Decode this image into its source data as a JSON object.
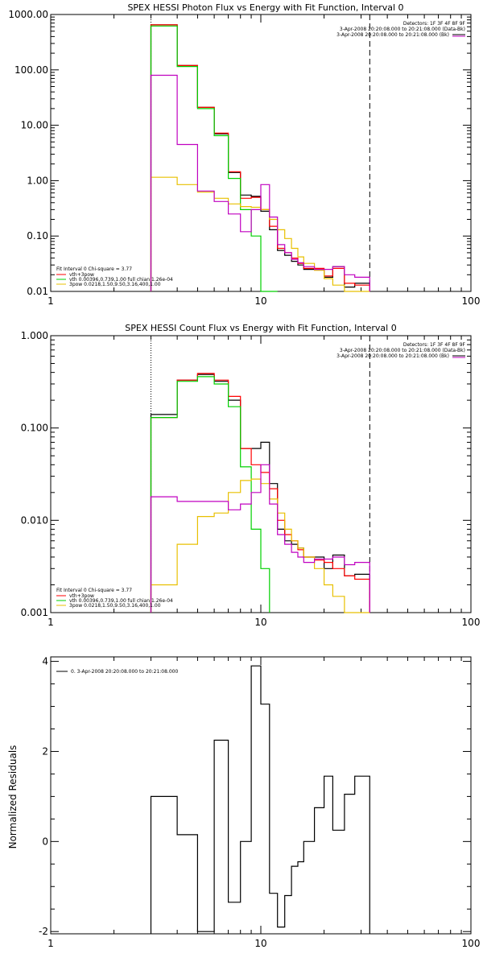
{
  "chart_data": [
    {
      "type": "line",
      "title": "SPEX HESSI Photon Flux vs Energy with Fit Function, Interval 0",
      "xscale": "log",
      "yscale": "log",
      "xlim": [
        1,
        100
      ],
      "ylim": [
        0.01,
        1000
      ],
      "xticks": [
        "1",
        "10",
        "100"
      ],
      "yticks": [
        "0.01",
        "0.10",
        "1.00",
        "10.00",
        "100.00",
        "1000.00"
      ],
      "ytick_values": [
        0.01,
        0.1,
        1,
        10,
        100,
        1000
      ],
      "energy_bins": [
        3,
        4,
        5,
        6,
        7,
        8,
        9,
        10,
        11,
        12,
        13,
        14,
        15,
        16,
        18,
        20,
        22,
        25,
        28,
        33
      ],
      "vlines": [
        {
          "x": 3,
          "style": "dotted"
        },
        {
          "x": 33,
          "style": "dashed"
        }
      ],
      "header_right": [
        "Detectors: 1F 3F 4F 8F 9F",
        "3-Apr-2008 20:20:08.000 to 20:21:08.000 (Data-Bk)",
        "3-Apr-2008 20:20:08.000 to 20:21:08.000 (Bk)"
      ],
      "header_colors": [
        "#000000",
        "#000000",
        "#c000c0"
      ],
      "legend": [
        "Fit Interval 0   Chi-square = 3.77",
        "vth+3pow",
        "vth 0.00396,0.739,1.00  full chian 1.26e-04",
        "3pow 0.0218,1.50,9.50,3.16,400,1.00"
      ],
      "legend_colors": [
        "",
        "#ff0000",
        "#00d000",
        "#e8c000"
      ],
      "series": [
        {
          "name": "Data-Bk",
          "color": "#000000",
          "values": [
            650,
            120,
            21,
            7,
            1.4,
            0.55,
            0.52,
            0.28,
            0.13,
            0.055,
            0.045,
            0.035,
            0.03,
            0.025,
            0.025,
            0.018,
            0.028,
            0.012,
            0.014
          ]
        },
        {
          "name": "vth+3pow",
          "color": "#ff0000",
          "values": [
            650,
            120,
            21,
            7.2,
            1.45,
            0.48,
            0.5,
            0.3,
            0.15,
            0.06,
            0.05,
            0.04,
            0.032,
            0.026,
            0.026,
            0.019,
            0.026,
            0.014,
            0.013
          ]
        },
        {
          "name": "vth",
          "color": "#00d000",
          "values": [
            620,
            115,
            20,
            6.5,
            1.1,
            0.3,
            0.1,
            0.01,
            0.004
          ]
        },
        {
          "name": "3pow",
          "color": "#e8c000",
          "values": [
            1.15,
            0.85,
            0.62,
            0.48,
            0.38,
            0.34,
            0.33,
            0.3,
            0.2,
            0.13,
            0.09,
            0.06,
            0.042,
            0.032,
            0.024,
            0.017,
            0.013,
            0.01,
            0.007
          ]
        },
        {
          "name": "Bk",
          "color": "#c000c0",
          "values": [
            80,
            4.5,
            0.65,
            0.42,
            0.25,
            0.12,
            0.3,
            0.85,
            0.22,
            0.07,
            0.05,
            0.038,
            0.033,
            0.028,
            0.025,
            0.025,
            0.028,
            0.02,
            0.018
          ]
        }
      ]
    },
    {
      "type": "line",
      "title": "SPEX HESSI Count Flux vs Energy with Fit Function, Interval 0",
      "xscale": "log",
      "yscale": "log",
      "xlim": [
        1,
        100
      ],
      "ylim": [
        0.001,
        1
      ],
      "xticks": [
        "1",
        "10",
        "100"
      ],
      "yticks": [
        "0.001",
        "0.010",
        "0.100",
        "1.000"
      ],
      "ytick_values": [
        0.001,
        0.01,
        0.1,
        1
      ],
      "energy_bins": [
        3,
        4,
        5,
        6,
        7,
        8,
        9,
        10,
        11,
        12,
        13,
        14,
        15,
        16,
        18,
        20,
        22,
        25,
        28,
        33
      ],
      "vlines": [
        {
          "x": 3,
          "style": "dotted"
        },
        {
          "x": 33,
          "style": "dashed"
        }
      ],
      "header_right": [
        "Detectors: 1F 3F 4F 8F 9F",
        "3-Apr-2008 20:20:08.000 to 20:21:08.000 (Data-Bk)",
        "3-Apr-2008 20:20:08.000 to 20:21:08.000 (Bk)"
      ],
      "header_colors": [
        "#000000",
        "#000000",
        "#c000c0"
      ],
      "legend": [
        "Fit Interval 0   Chi-square = 3.77",
        "vth+3pow",
        "vth 0.00396,0.739,1.00  full chian 1.26e-04",
        "3pow 0.0218,1.50,9.50,3.16,400,1.00"
      ],
      "legend_colors": [
        "",
        "#ff0000",
        "#00d000",
        "#e8c000"
      ],
      "series": [
        {
          "name": "Data-Bk",
          "color": "#000000",
          "values": [
            0.14,
            0.33,
            0.38,
            0.32,
            0.2,
            0.06,
            0.06,
            0.07,
            0.025,
            0.008,
            0.006,
            0.0055,
            0.005,
            0.004,
            0.004,
            0.003,
            0.0042,
            0.0025,
            0.0026
          ]
        },
        {
          "name": "vth+3pow",
          "color": "#ff0000",
          "values": [
            0.13,
            0.33,
            0.39,
            0.33,
            0.22,
            0.06,
            0.04,
            0.033,
            0.022,
            0.01,
            0.007,
            0.006,
            0.0048,
            0.004,
            0.0037,
            0.0035,
            0.003,
            0.0025,
            0.0023
          ]
        },
        {
          "name": "vth",
          "color": "#00d000",
          "values": [
            0.13,
            0.32,
            0.36,
            0.3,
            0.17,
            0.038,
            0.008,
            0.003
          ]
        },
        {
          "name": "3pow",
          "color": "#e8c000",
          "values": [
            0.002,
            0.0055,
            0.011,
            0.012,
            0.02,
            0.027,
            0.028,
            0.025,
            0.017,
            0.012,
            0.008,
            0.006,
            0.005,
            0.004,
            0.003,
            0.002,
            0.0015,
            0.001,
            0.0008
          ]
        },
        {
          "name": "Bk",
          "color": "#c000c0",
          "values": [
            0.018,
            0.016,
            0.016,
            0.016,
            0.013,
            0.015,
            0.02,
            0.04,
            0.015,
            0.007,
            0.0055,
            0.0045,
            0.004,
            0.0035,
            0.0038,
            0.0038,
            0.004,
            0.0033,
            0.0035
          ]
        }
      ]
    },
    {
      "type": "line",
      "title": "",
      "ylabel": "Normalized Residuals",
      "xscale": "log",
      "xlim": [
        1,
        100
      ],
      "ylim": [
        -2.05,
        4.1
      ],
      "xticks": [
        "1",
        "10",
        "100"
      ],
      "yticks": [
        "-2",
        "0",
        "2",
        "4"
      ],
      "ytick_values": [
        -2,
        0,
        2,
        4
      ],
      "energy_bins": [
        3,
        4,
        5,
        6,
        7,
        8,
        9,
        10,
        11,
        12,
        13,
        14,
        15,
        16,
        18,
        20,
        22,
        25,
        28,
        33
      ],
      "legend": [
        "0. 3-Apr-2008 20:20:08.000 to 20:21:08.000"
      ],
      "legend_colors": [
        "#000000"
      ],
      "series": [
        {
          "name": "0. 3-Apr-2008 20:20:08.000 to 20:21:08.000",
          "color": "#000000",
          "values": [
            1.0,
            0.15,
            -2.0,
            2.25,
            -1.35,
            0.0,
            3.9,
            3.05,
            -1.15,
            -1.9,
            -1.2,
            -0.55,
            -0.45,
            0.0,
            0.75,
            1.45,
            0.25,
            1.05,
            1.45
          ]
        }
      ]
    }
  ]
}
